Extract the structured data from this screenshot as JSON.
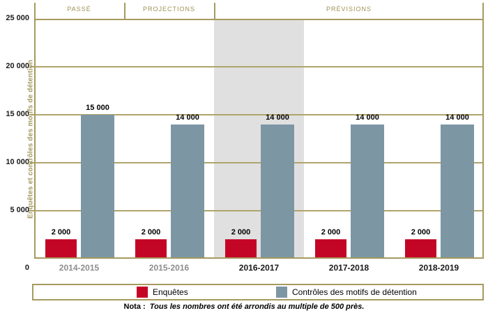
{
  "chart_data": {
    "type": "bar",
    "categories": [
      {
        "label": "2014-2015",
        "muted": true
      },
      {
        "label": "2015-2016",
        "muted": true
      },
      {
        "label": "2016-2017",
        "muted": false
      },
      {
        "label": "2017-2018",
        "muted": false
      },
      {
        "label": "2018-2019",
        "muted": false
      }
    ],
    "series": [
      {
        "key": "enquetes",
        "name": "Enquêtes",
        "color": "#C40626",
        "values": [
          2000,
          2000,
          2000,
          2000,
          2000
        ],
        "display_values": [
          "2 000",
          "2 000",
          "2 000",
          "2 000",
          "2 000"
        ]
      },
      {
        "key": "controles",
        "name": "Contrôles des motifs de détention",
        "color": "#7D96A4",
        "values": [
          15000,
          14000,
          14000,
          14000,
          14000
        ],
        "display_values": [
          "15 000",
          "14 000",
          "14 000",
          "14 000",
          "14 000"
        ]
      }
    ],
    "ylabel": "Enquêtes et contrôles des motifs de détention",
    "ylim": [
      0,
      25000
    ],
    "yticks": [
      {
        "value": 25000,
        "label": "25 000"
      },
      {
        "value": 20000,
        "label": "20 000"
      },
      {
        "value": 15000,
        "label": "15 000"
      },
      {
        "value": 10000,
        "label": "10 000"
      },
      {
        "value": 5000,
        "label": "5 000"
      },
      {
        "value": 0,
        "label": "0"
      }
    ],
    "periods": [
      {
        "label": "PASSÉ",
        "from": 0,
        "to": 0
      },
      {
        "label": "PROJECTIONS",
        "from": 1,
        "to": 1
      },
      {
        "label": "PRÉVISIONS",
        "from": 2,
        "to": 4
      }
    ],
    "highlight_category": 2,
    "grid": true,
    "legend_position": "bottom"
  },
  "note": {
    "prefix": "Nota :",
    "text": "Tous les nombres ont été arrondis au multiple de 500 près."
  },
  "colors": {
    "axis": "#A69A5F",
    "grid": "#AFA46B",
    "band": "#E0E0E0",
    "period_text": "#9C9053",
    "ylabel_text": "#A39A62",
    "muted_label": "#8D8D8D",
    "label": "#1A1A1A"
  }
}
